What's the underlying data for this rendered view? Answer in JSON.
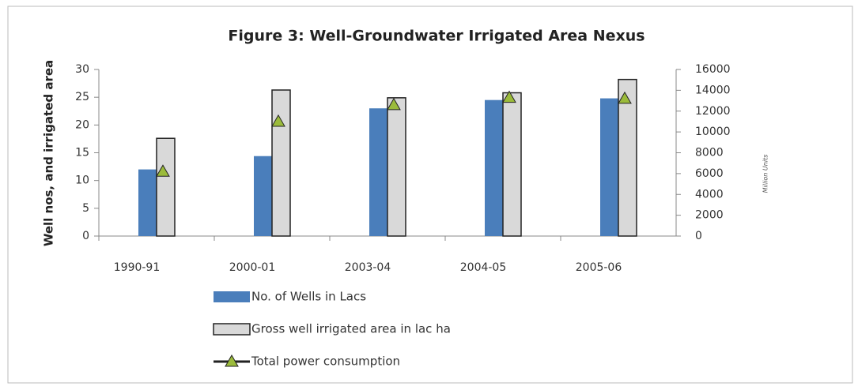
{
  "chart_data": {
    "type": "bar",
    "title": "Figure 3: Well-Groundwater Irrigated Area Nexus",
    "ylabel": "Well nos, and irrigated area",
    "y2label": "Million Units",
    "categories": [
      "1990-91",
      "2000-01",
      "2003-04",
      "2004-05",
      "2005-06"
    ],
    "series": [
      {
        "name": "No. of Wells in Lacs",
        "color": "#4a7ebb",
        "type": "bar",
        "values": [
          12,
          14.4,
          23,
          24.5,
          24.8
        ]
      },
      {
        "name": "Gross well irrigated area in lac ha",
        "color": "#d9d9d9",
        "type": "bar",
        "values": [
          17.6,
          26.3,
          24.9,
          25.8,
          28.2
        ]
      },
      {
        "name": "Total power consumption",
        "color": "#9bbb3b",
        "type": "marker",
        "axis": "y2",
        "values": [
          6200,
          11000,
          12600,
          13300,
          13200
        ]
      }
    ],
    "ylim": [
      0,
      30
    ],
    "yticks": [
      0,
      5,
      10,
      15,
      20,
      25,
      30
    ],
    "y2lim": [
      0,
      16000
    ],
    "y2ticks": [
      0,
      2000,
      4000,
      6000,
      8000,
      10000,
      12000,
      14000,
      16000
    ],
    "legend": "bottom"
  }
}
